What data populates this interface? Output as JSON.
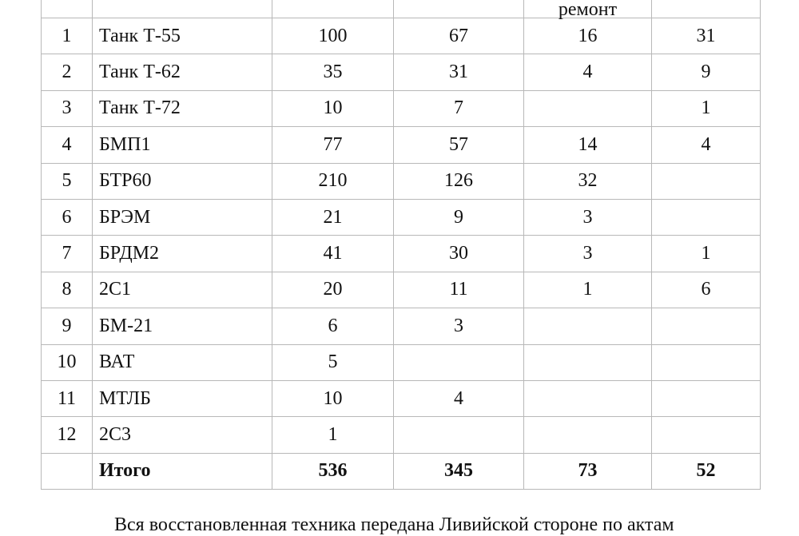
{
  "header": {
    "partial_text": "ремонт"
  },
  "rows": [
    {
      "n": "1",
      "name": "Танк Т-55",
      "c1": "100",
      "c2": "67",
      "c3": "16",
      "c4": "31"
    },
    {
      "n": "2",
      "name": "Танк Т-62",
      "c1": "35",
      "c2": "31",
      "c3": "4",
      "c4": "9"
    },
    {
      "n": "3",
      "name": "Танк Т-72",
      "c1": "10",
      "c2": "7",
      "c3": "",
      "c4": "1"
    },
    {
      "n": "4",
      "name": "БМП1",
      "c1": "77",
      "c2": "57",
      "c3": "14",
      "c4": "4"
    },
    {
      "n": "5",
      "name": "БТР60",
      "c1": "210",
      "c2": "126",
      "c3": "32",
      "c4": ""
    },
    {
      "n": "6",
      "name": "БРЭМ",
      "c1": "21",
      "c2": "9",
      "c3": "3",
      "c4": ""
    },
    {
      "n": "7",
      "name": "БРДМ2",
      "c1": "41",
      "c2": "30",
      "c3": "3",
      "c4": "1"
    },
    {
      "n": "8",
      "name": "2С1",
      "c1": "20",
      "c2": "11",
      "c3": "1",
      "c4": "6"
    },
    {
      "n": "9",
      "name": "БМ-21",
      "c1": "6",
      "c2": "3",
      "c3": "",
      "c4": ""
    },
    {
      "n": "10",
      "name": "ВАТ",
      "c1": "5",
      "c2": "",
      "c3": "",
      "c4": ""
    },
    {
      "n": "11",
      "name": "МТЛБ",
      "c1": "10",
      "c2": "4",
      "c3": "",
      "c4": ""
    },
    {
      "n": "12",
      "name": "2С3",
      "c1": "1",
      "c2": "",
      "c3": "",
      "c4": ""
    }
  ],
  "total": {
    "name": "Итого",
    "c1": "536",
    "c2": "345",
    "c3": "73",
    "c4": "52"
  },
  "paragraph": "Вся восстановленная техника передана Ливийской стороне по актам"
}
